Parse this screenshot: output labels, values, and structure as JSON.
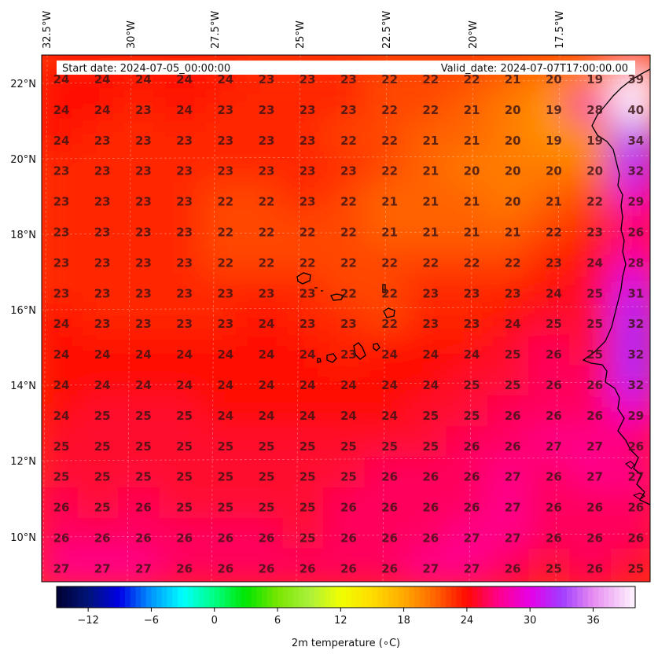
{
  "header": {
    "start_date": "Start date: 2024-07-05_00:00:00",
    "valid_date": "Valid_date: 2024-07-07T17:00:00.00"
  },
  "map": {
    "longitude_labels": [
      "32.5°W",
      "30°W",
      "27.5°W",
      "25°W",
      "22.5°W",
      "20°W",
      "17.5°W"
    ],
    "latitude_labels": [
      "22°N",
      "20°N",
      "18°N",
      "16°N",
      "14°N",
      "12°N",
      "10°N"
    ],
    "lon_range": [
      -33,
      -15
    ],
    "lat_range": [
      9,
      22.8
    ],
    "grid": true,
    "coastline_color": "#000000",
    "values": [
      [
        24,
        24,
        24,
        24,
        24,
        23,
        23,
        23,
        22,
        22,
        22,
        21,
        20,
        19,
        39
      ],
      [
        24,
        24,
        23,
        24,
        23,
        23,
        23,
        23,
        22,
        22,
        21,
        20,
        19,
        28,
        40
      ],
      [
        24,
        23,
        23,
        23,
        23,
        23,
        23,
        22,
        22,
        21,
        21,
        20,
        19,
        19,
        34
      ],
      [
        23,
        23,
        23,
        23,
        23,
        23,
        23,
        23,
        22,
        21,
        20,
        20,
        20,
        20,
        32
      ],
      [
        23,
        23,
        23,
        23,
        22,
        22,
        23,
        22,
        21,
        21,
        21,
        20,
        21,
        22,
        29
      ],
      [
        23,
        23,
        23,
        23,
        22,
        22,
        22,
        22,
        21,
        21,
        21,
        21,
        22,
        23,
        26
      ],
      [
        23,
        23,
        23,
        23,
        22,
        22,
        22,
        22,
        22,
        22,
        22,
        22,
        23,
        24,
        28
      ],
      [
        23,
        23,
        23,
        23,
        23,
        23,
        23,
        22,
        22,
        23,
        23,
        23,
        24,
        25,
        31
      ],
      [
        24,
        23,
        23,
        23,
        23,
        24,
        23,
        23,
        22,
        23,
        23,
        24,
        25,
        25,
        32
      ],
      [
        24,
        24,
        24,
        24,
        24,
        24,
        24,
        23,
        24,
        24,
        24,
        25,
        26,
        25,
        32
      ],
      [
        24,
        24,
        24,
        24,
        24,
        24,
        24,
        24,
        24,
        24,
        25,
        25,
        26,
        26,
        32
      ],
      [
        24,
        25,
        25,
        25,
        24,
        24,
        24,
        24,
        24,
        25,
        25,
        26,
        26,
        26,
        29
      ],
      [
        25,
        25,
        25,
        25,
        25,
        25,
        25,
        25,
        25,
        25,
        26,
        26,
        27,
        27,
        26
      ],
      [
        25,
        25,
        25,
        25,
        25,
        25,
        25,
        25,
        26,
        26,
        26,
        27,
        26,
        27,
        27
      ],
      [
        26,
        25,
        26,
        25,
        25,
        25,
        25,
        26,
        26,
        26,
        26,
        27,
        26,
        26,
        26
      ],
      [
        26,
        26,
        26,
        26,
        26,
        26,
        25,
        26,
        26,
        26,
        27,
        27,
        26,
        26,
        26
      ],
      [
        27,
        27,
        27,
        26,
        26,
        26,
        26,
        26,
        26,
        27,
        27,
        26,
        25,
        26,
        25
      ]
    ]
  },
  "colorbar": {
    "tick_labels": [
      "−12",
      "−6",
      "0",
      "6",
      "12",
      "18",
      "24",
      "30",
      "36"
    ],
    "tick_values": [
      -12,
      -6,
      0,
      6,
      12,
      18,
      24,
      30,
      36
    ],
    "range": [
      -15,
      40
    ],
    "label": "2m temperature (∘C)"
  }
}
